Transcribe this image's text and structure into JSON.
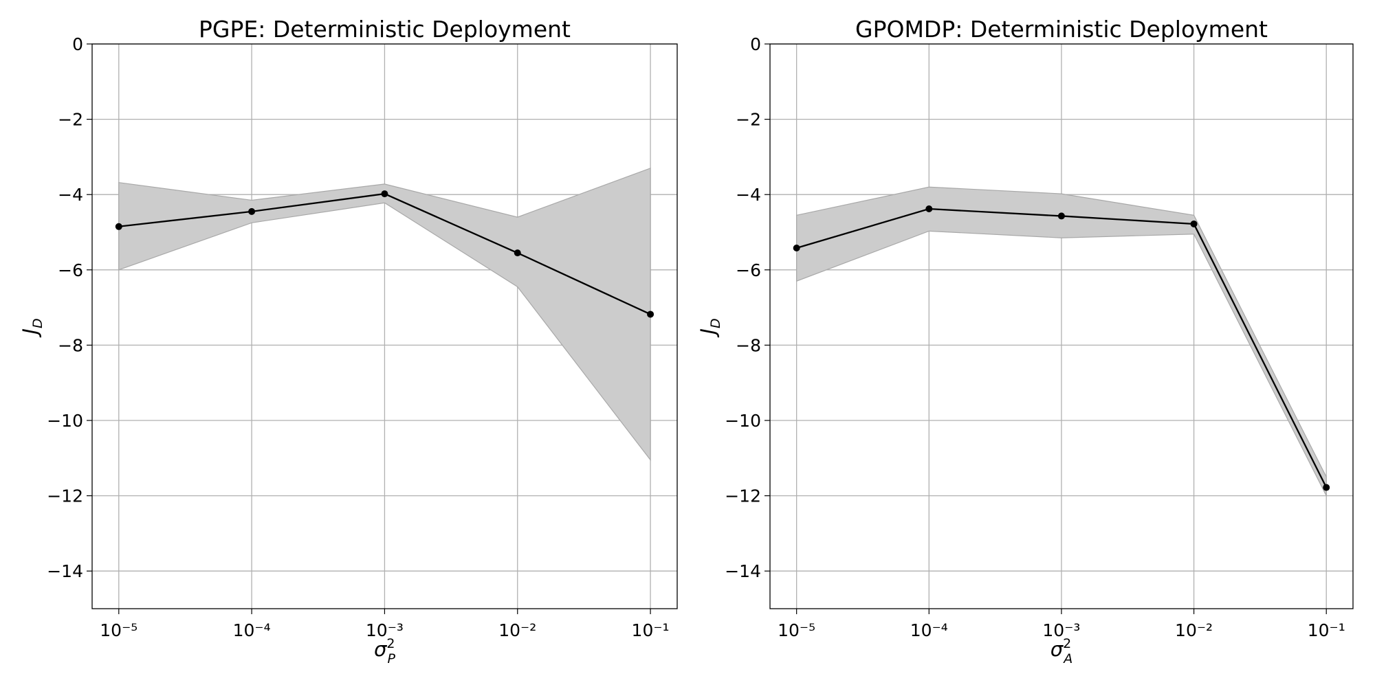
{
  "chart_data": [
    {
      "type": "line",
      "title": "PGPE: Deterministic Deployment",
      "xlabel": {
        "symbol": "σ",
        "subscript": "P",
        "superscript": "2"
      },
      "ylabel": {
        "symbol": "J",
        "subscript": "D"
      },
      "x": [
        1e-05,
        0.0001,
        0.001,
        0.01,
        0.1
      ],
      "series": [
        {
          "color": "#000000",
          "band_color": "#cccccc",
          "values": [
            -4.85,
            -4.45,
            -3.98,
            -5.55,
            -7.18
          ],
          "lower": [
            -6.0,
            -4.75,
            -4.22,
            -6.45,
            -11.05
          ],
          "upper": [
            -3.68,
            -4.15,
            -3.72,
            -4.6,
            -3.3
          ]
        }
      ],
      "xscale": "log",
      "xlim": [
        6.3e-06,
        0.159
      ],
      "xticks": [
        {
          "value": 1e-05,
          "label": "10⁻⁵"
        },
        {
          "value": 0.0001,
          "label": "10⁻⁴"
        },
        {
          "value": 0.001,
          "label": "10⁻³"
        },
        {
          "value": 0.01,
          "label": "10⁻²"
        },
        {
          "value": 0.1,
          "label": "10⁻¹"
        }
      ],
      "ylim": [
        -15,
        0
      ],
      "yticks": [
        0,
        {
          "value": -2,
          "label": "−2"
        },
        {
          "value": -4,
          "label": "−4"
        },
        {
          "value": -6,
          "label": "−6"
        },
        {
          "value": -8,
          "label": "−8"
        },
        {
          "value": -10,
          "label": "−10"
        },
        {
          "value": -12,
          "label": "−12"
        },
        {
          "value": -14,
          "label": "−14"
        }
      ],
      "grid": true
    },
    {
      "type": "line",
      "title": "GPOMDP: Deterministic Deployment",
      "xlabel": {
        "symbol": "σ",
        "subscript": "A",
        "superscript": "2"
      },
      "ylabel": {
        "symbol": "J",
        "subscript": "D"
      },
      "x": [
        1e-05,
        0.0001,
        0.001,
        0.01,
        0.1
      ],
      "series": [
        {
          "color": "#000000",
          "band_color": "#cccccc",
          "values": [
            -5.42,
            -4.38,
            -4.57,
            -4.78,
            -11.78
          ],
          "lower": [
            -6.3,
            -4.97,
            -5.15,
            -5.05,
            -12.0
          ],
          "upper": [
            -4.55,
            -3.8,
            -3.98,
            -4.55,
            -11.5
          ]
        }
      ],
      "xscale": "log",
      "xlim": [
        6.3e-06,
        0.159
      ],
      "xticks": [
        {
          "value": 1e-05,
          "label": "10⁻⁵"
        },
        {
          "value": 0.0001,
          "label": "10⁻⁴"
        },
        {
          "value": 0.001,
          "label": "10⁻³"
        },
        {
          "value": 0.01,
          "label": "10⁻²"
        },
        {
          "value": 0.1,
          "label": "10⁻¹"
        }
      ],
      "ylim": [
        -15,
        0
      ],
      "yticks": [
        0,
        {
          "value": -2,
          "label": "−2"
        },
        {
          "value": -4,
          "label": "−4"
        },
        {
          "value": -6,
          "label": "−6"
        },
        {
          "value": -8,
          "label": "−8"
        },
        {
          "value": -10,
          "label": "−10"
        },
        {
          "value": -12,
          "label": "−12"
        },
        {
          "value": -14,
          "label": "−14"
        }
      ],
      "grid": true
    }
  ]
}
